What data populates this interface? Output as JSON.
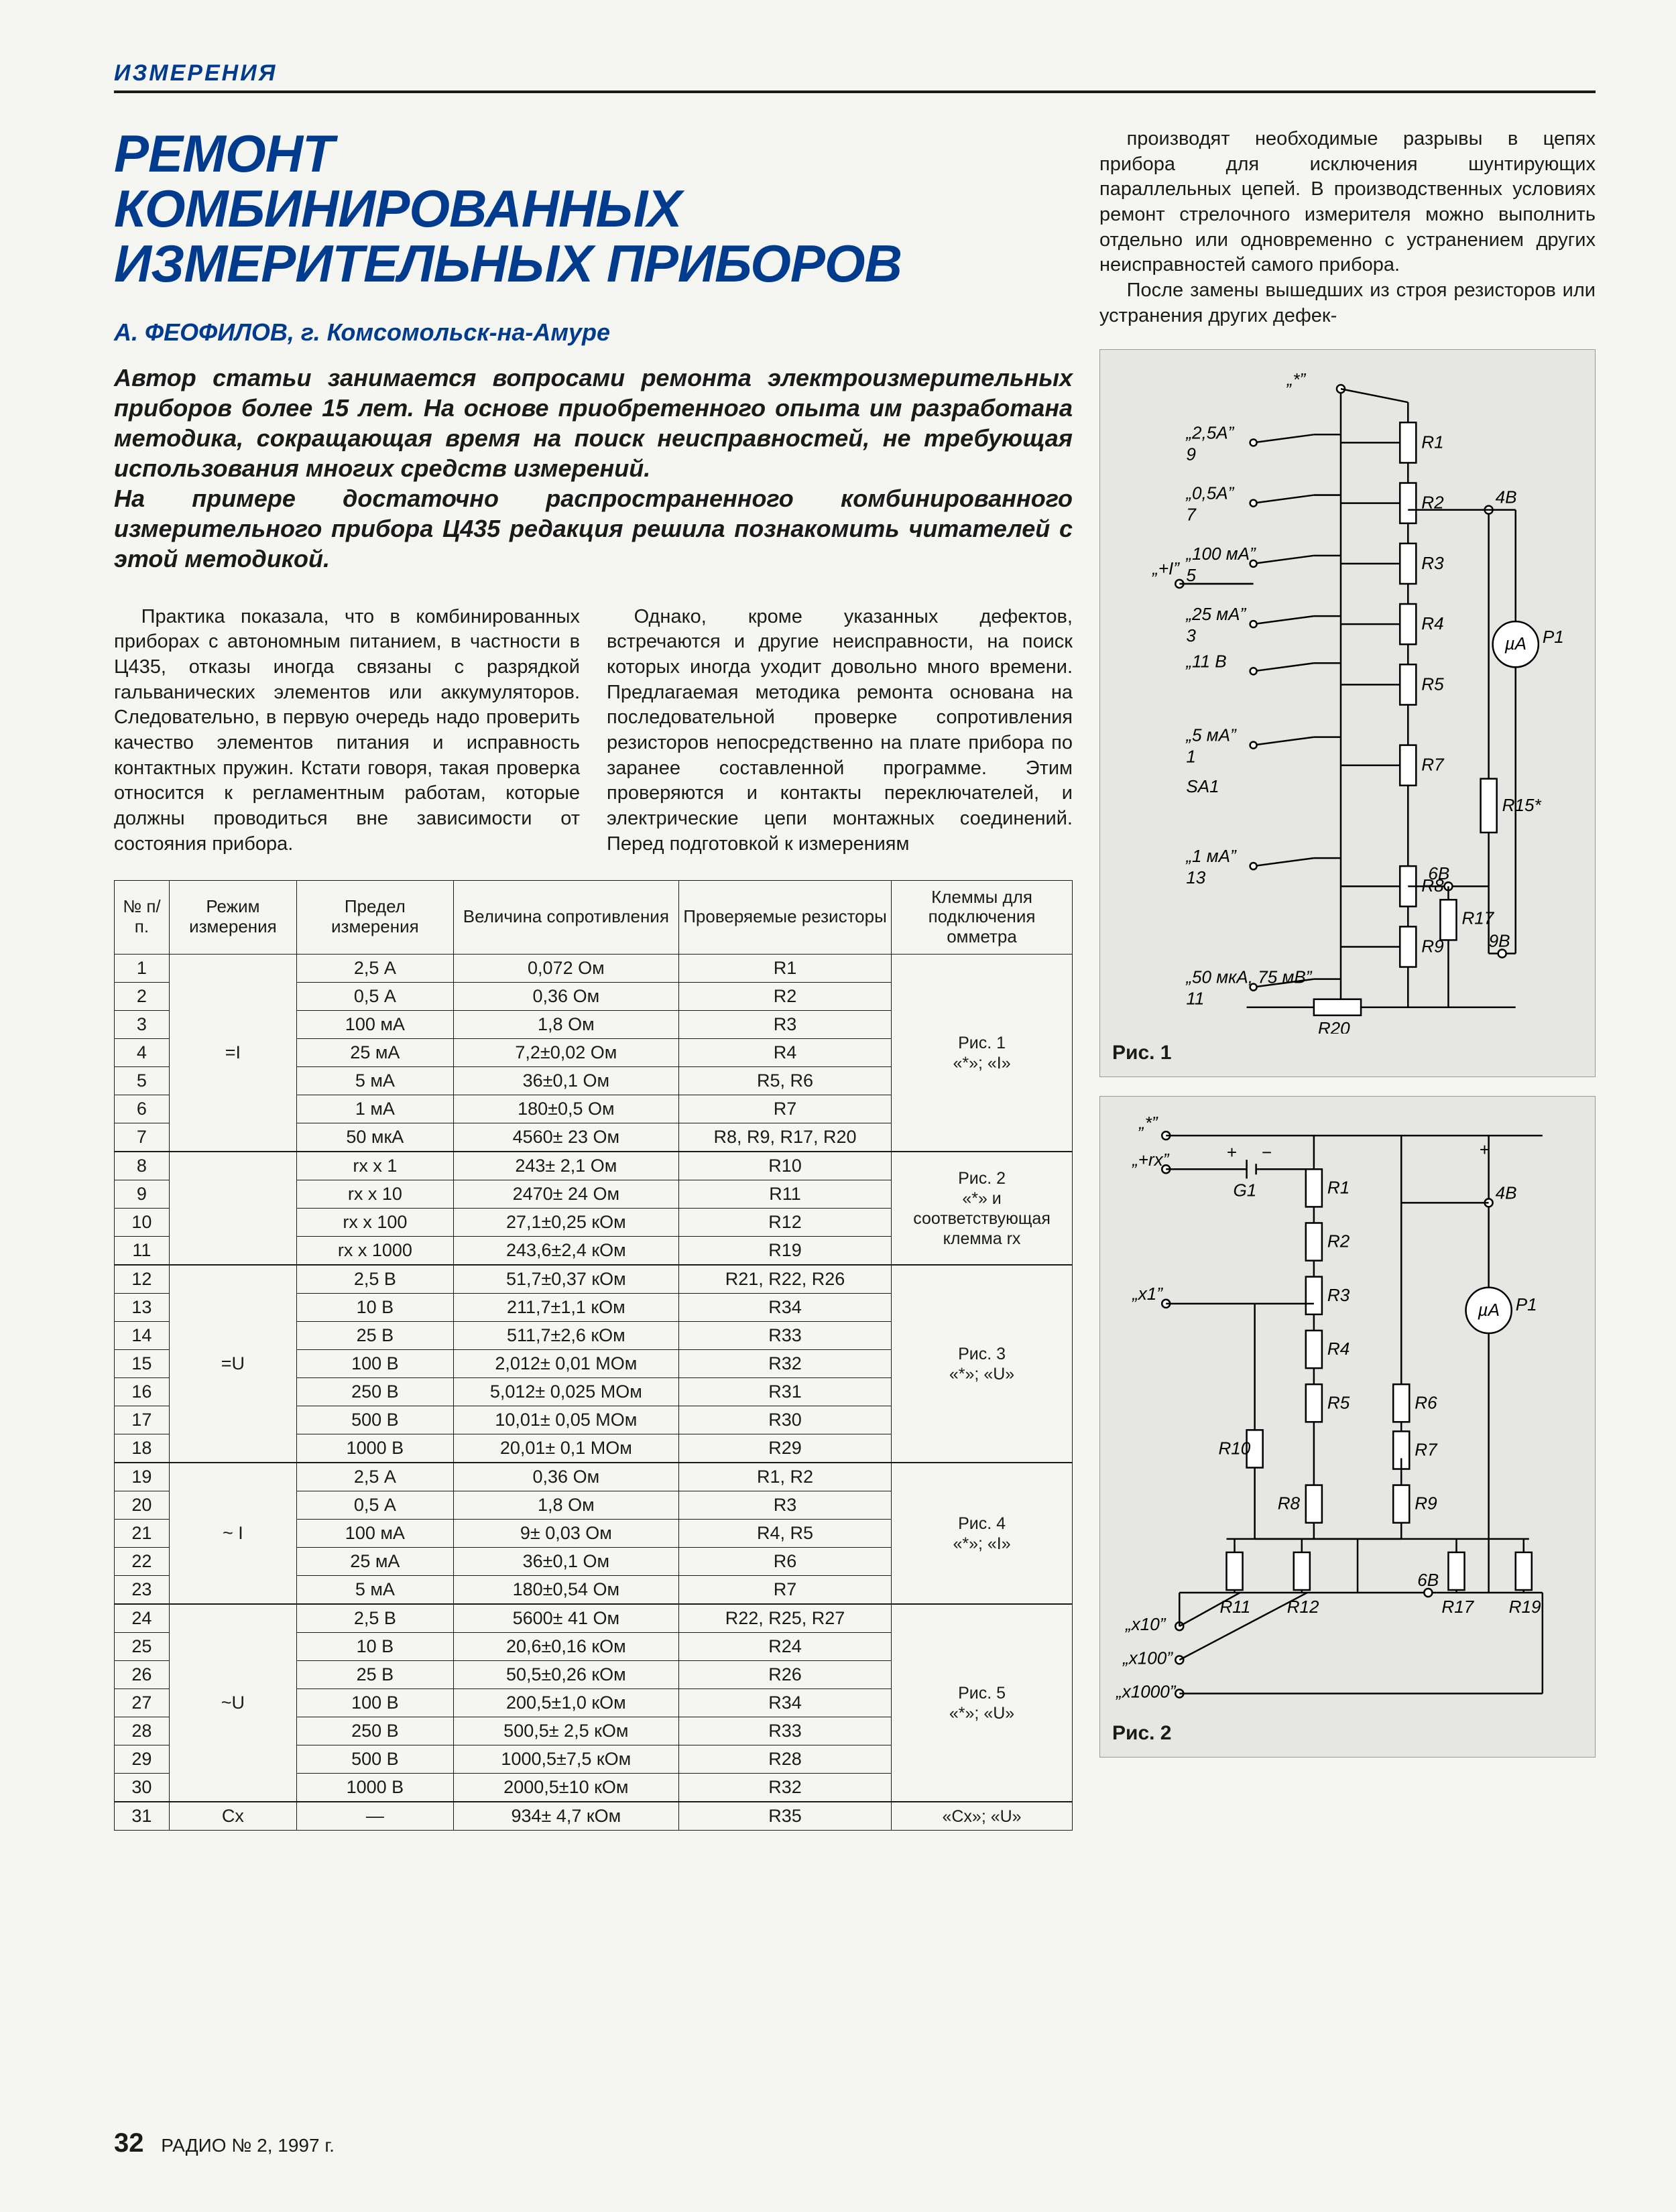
{
  "rubric": "ИЗМЕРЕНИЯ",
  "title_l1": "РЕМОНТ",
  "title_l2": "КОМБИНИРОВАННЫХ",
  "title_l3": "ИЗМЕРИТЕЛЬНЫХ ПРИБОРОВ",
  "author": "А. ФЕОФИЛОВ, г. Комсомольск-на-Амуре",
  "abstract_p1": "Автор статьи занимается вопросами ремонта электроизмерительных приборов более 15 лет. На основе приобретенного опыта им разработана методика, сокращающая время на поиск неисправностей, не требующая использования многих средств измерений.",
  "abstract_p2": "На примере достаточно распространенного комбинированного измерительного прибора Ц435 редакция решила познакомить читателей с этой методикой.",
  "body_p1": "Практика показала, что в комбинированных приборах с автономным питанием, в частности в Ц435, отказы иногда связаны с разрядкой гальванических элементов или аккумуляторов. Следовательно, в первую очередь надо проверить качество элементов питания и исправность контактных пружин. Кстати говоря, такая проверка относится к регламентным работам, которые должны проводиться вне зависимости от состояния прибора.",
  "body_p2": "Однако, кроме указанных дефектов, встречаются и другие неисправности, на поиск которых иногда уходит довольно много времени. Предлагаемая методика ремонта основана на последовательной проверке сопротивления резисторов непосредственно на плате прибора по заранее составленной программе. Этим проверяются и контакты переключателей, и электрические цепи монтажных соединений. Перед подготовкой к измерениям",
  "right_p1": "производят необходимые разрывы в цепях прибора для исключения шунтирующих параллельных цепей. В производственных условиях ремонт стрелочного измерителя можно выполнить отдельно или одновременно с устранением других неисправностей самого прибора.",
  "right_p2": "После замены вышедших из строя резисторов или устранения других дефек-",
  "table": {
    "headers": [
      "№ п/п.",
      "Режим измерения",
      "Предел измерения",
      "Величина сопротивления",
      "Проверяемые резисторы",
      "Клеммы для подключения омметра"
    ],
    "groups": [
      {
        "mode": "=I",
        "term": "Рис. 1\n«*»; «I»",
        "rows": [
          [
            "1",
            "2,5 А",
            "0,072 Ом",
            "R1"
          ],
          [
            "2",
            "0,5 А",
            "0,36 Ом",
            "R2"
          ],
          [
            "3",
            "100 мА",
            "1,8 Ом",
            "R3"
          ],
          [
            "4",
            "25 мА",
            "7,2±0,02 Ом",
            "R4"
          ],
          [
            "5",
            "5 мА",
            "36±0,1 Ом",
            "R5, R6"
          ],
          [
            "6",
            "1 мА",
            "180±0,5 Ом",
            "R7"
          ],
          [
            "7",
            "50 мкА",
            "4560± 23 Ом",
            "R8, R9, R17, R20"
          ]
        ]
      },
      {
        "mode": "",
        "term": "Рис. 2\n«*» и соответствующая клемма rx",
        "rows": [
          [
            "8",
            "rx x 1",
            "243± 2,1 Ом",
            "R10"
          ],
          [
            "9",
            "rx x 10",
            "2470± 24 Ом",
            "R11"
          ],
          [
            "10",
            "rx x 100",
            "27,1±0,25 кОм",
            "R12"
          ],
          [
            "11",
            "rx x 1000",
            "243,6±2,4 кОм",
            "R19"
          ]
        ]
      },
      {
        "mode": "=U",
        "term": "Рис. 3\n«*»; «U»",
        "rows": [
          [
            "12",
            "2,5 В",
            "51,7±0,37 кОм",
            "R21, R22, R26"
          ],
          [
            "13",
            "10 В",
            "211,7±1,1 кОм",
            "R34"
          ],
          [
            "14",
            "25 В",
            "511,7±2,6 кОм",
            "R33"
          ],
          [
            "15",
            "100 В",
            "2,012± 0,01 МОм",
            "R32"
          ],
          [
            "16",
            "250 В",
            "5,012± 0,025 МОм",
            "R31"
          ],
          [
            "17",
            "500 В",
            "10,01± 0,05 МОм",
            "R30"
          ],
          [
            "18",
            "1000 В",
            "20,01± 0,1 МОм",
            "R29"
          ]
        ]
      },
      {
        "mode": "~ I",
        "term": "Рис. 4\n«*»; «I»",
        "rows": [
          [
            "19",
            "2,5 А",
            "0,36 Ом",
            "R1, R2"
          ],
          [
            "20",
            "0,5 А",
            "1,8 Ом",
            "R3"
          ],
          [
            "21",
            "100 мА",
            "9± 0,03 Ом",
            "R4, R5"
          ],
          [
            "22",
            "25 мА",
            "36±0,1 Ом",
            "R6"
          ],
          [
            "23",
            "5 мА",
            "180±0,54 Ом",
            "R7"
          ]
        ]
      },
      {
        "mode": "~U",
        "term": "Рис. 5\n«*»; «U»",
        "rows": [
          [
            "24",
            "2,5 В",
            "5600± 41 Ом",
            "R22, R25, R27"
          ],
          [
            "25",
            "10 В",
            "20,6±0,16 кОм",
            "R24"
          ],
          [
            "26",
            "25 В",
            "50,5±0,26 кОм",
            "R26"
          ],
          [
            "27",
            "100 В",
            "200,5±1,0 кОм",
            "R34"
          ],
          [
            "28",
            "250 В",
            "500,5± 2,5 кОм",
            "R33"
          ],
          [
            "29",
            "500 В",
            "1000,5±7,5 кОм",
            "R28"
          ],
          [
            "30",
            "1000 В",
            "2000,5±10 кОм",
            "R32"
          ]
        ]
      },
      {
        "mode": "Cx",
        "term": "«Cx»; «U»",
        "rows": [
          [
            "31",
            "—",
            "934± 4,7 кОм",
            "R35"
          ]
        ]
      }
    ]
  },
  "fig1_caption": "Рис. 1",
  "fig2_caption": "Рис. 2",
  "fig1_labels": {
    "top": "„*”",
    "l1": "„2,5А”",
    "s1": "9",
    "l2": "„0,5А”",
    "s2": "7",
    "l3": "„100 мА”",
    "s3": "5",
    "plusI": "„+I”",
    "l4": "„25 мА”",
    "s4": "3",
    "l5": "„11 В",
    "l6": "„5 мА”",
    "s6": "1",
    "SA": "SA1",
    "l7": "„1 мА”",
    "s7": "13",
    "l8": "„50 мкА, 75 мВ”",
    "s8": "11",
    "R1": "R1",
    "R2": "R2",
    "R3": "R3",
    "R4": "R4",
    "R5": "R5",
    "R7": "R7",
    "R8": "R8",
    "R9": "R9",
    "R15": "R15*",
    "R17": "R17",
    "R20": "R20",
    "v48": "4В",
    "v68": "6В",
    "v98": "9В",
    "uA": "µA",
    "P1": "P1"
  },
  "fig2_labels": {
    "top": "„*”",
    "rxp": "„+rx”",
    "G1": "G1",
    "x1": "„x1”",
    "R1": "R1",
    "R2": "R2",
    "R3": "R3",
    "R4": "R4",
    "R5": "R5",
    "R6": "R6",
    "R7": "R7",
    "R8": "R8",
    "R9": "R9",
    "R10": "R10",
    "R11": "R11",
    "R12": "R12",
    "R17": "R17",
    "R19": "R19",
    "v48": "4В",
    "v68": "6В",
    "uA": "µA",
    "P1": "P1",
    "x10": "„x10”",
    "x100": "„x100”",
    "x1000": "„x1000”"
  },
  "footer_page": "32",
  "footer_issue": "РАДИО № 2, 1997 г."
}
